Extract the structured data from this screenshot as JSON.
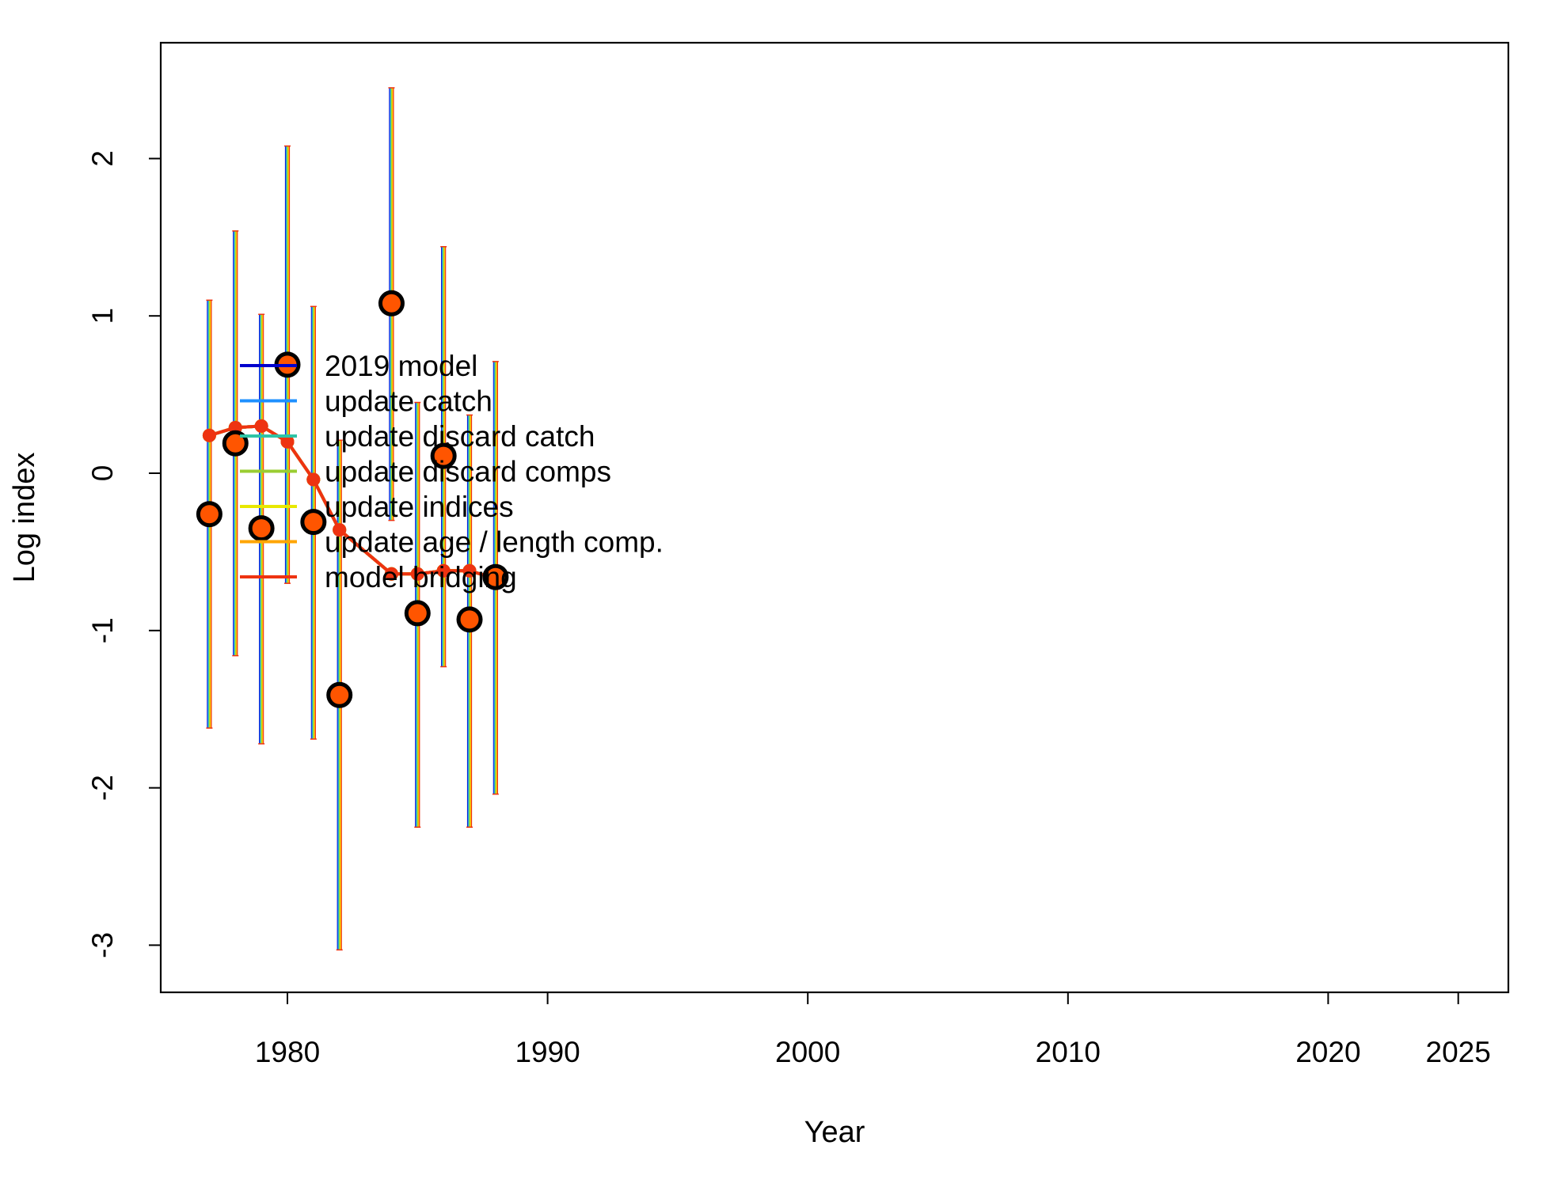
{
  "chart_data": {
    "type": "line",
    "xlabel": "Year",
    "ylabel": "Log index",
    "xlim": [
      1975,
      2027
    ],
    "ylim": [
      -3.3,
      2.75
    ],
    "xticks": [
      1980,
      1990,
      2000,
      2010,
      2020,
      2025
    ],
    "yticks": [
      -3,
      -2,
      -1,
      0,
      1,
      2
    ],
    "observed": {
      "x": [
        1977,
        1978,
        1979,
        1980,
        1981,
        1982,
        1984,
        1985,
        1986,
        1987,
        1988
      ],
      "y": [
        -0.26,
        0.19,
        -0.35,
        0.69,
        -0.31,
        -1.41,
        1.08,
        -0.89,
        0.11,
        -0.93,
        -0.66
      ],
      "lower": [
        -1.62,
        -1.16,
        -1.72,
        -0.7,
        -1.69,
        -3.03,
        -0.3,
        -2.25,
        -1.23,
        -2.25,
        -2.04
      ],
      "upper": [
        1.1,
        1.54,
        1.01,
        2.08,
        1.06,
        0.21,
        2.45,
        0.45,
        1.44,
        0.37,
        0.71
      ],
      "point_fill": "#FF5500",
      "point_edge": "#000000"
    },
    "legend_position": "top-left",
    "series": [
      {
        "name": "2019 model",
        "color": "#0000CD",
        "values": [
          0.24,
          0.29,
          0.3,
          0.2,
          -0.04,
          -0.36,
          -0.64,
          -0.64,
          -0.62,
          -0.62,
          -0.67
        ]
      },
      {
        "name": "update catch",
        "color": "#1E90FF",
        "values": [
          0.24,
          0.29,
          0.3,
          0.2,
          -0.04,
          -0.36,
          -0.64,
          -0.64,
          -0.62,
          -0.62,
          -0.67
        ]
      },
      {
        "name": "update discard catch",
        "color": "#2EC4A6",
        "values": [
          0.24,
          0.29,
          0.3,
          0.2,
          -0.04,
          -0.36,
          -0.64,
          -0.64,
          -0.62,
          -0.62,
          -0.67
        ]
      },
      {
        "name": "update discard comps",
        "color": "#9ACD32",
        "values": [
          0.24,
          0.29,
          0.3,
          0.2,
          -0.04,
          -0.36,
          -0.64,
          -0.64,
          -0.62,
          -0.62,
          -0.67
        ]
      },
      {
        "name": "update indices",
        "color": "#E8E800",
        "values": [
          0.24,
          0.29,
          0.3,
          0.2,
          -0.04,
          -0.36,
          -0.64,
          -0.64,
          -0.62,
          -0.62,
          -0.67
        ]
      },
      {
        "name": "update age / length comp.",
        "color": "#FFA500",
        "values": [
          0.24,
          0.29,
          0.3,
          0.2,
          -0.04,
          -0.36,
          -0.64,
          -0.64,
          -0.62,
          -0.62,
          -0.67
        ]
      },
      {
        "name": "model bridging",
        "color": "#EE3311",
        "values": [
          0.24,
          0.29,
          0.3,
          0.2,
          -0.04,
          -0.36,
          -0.64,
          -0.64,
          -0.62,
          -0.62,
          -0.67
        ]
      }
    ]
  }
}
